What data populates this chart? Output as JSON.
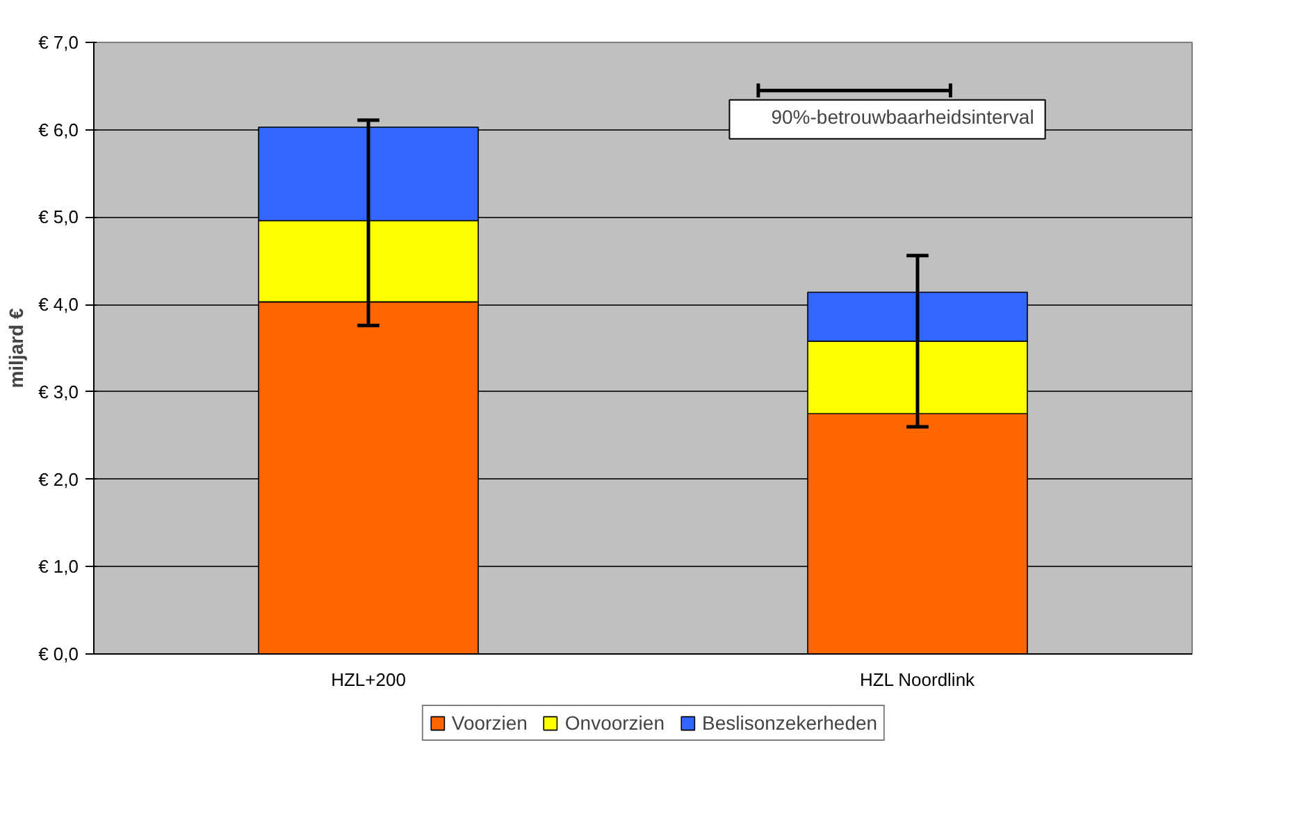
{
  "chart_data": {
    "type": "bar",
    "stacked": true,
    "ylabel": "miljard €",
    "categories": [
      "HZL+200",
      "HZL Noordlink"
    ],
    "series": [
      {
        "name": "Voorzien",
        "color": "#ff6600",
        "values": [
          4.03,
          2.75
        ]
      },
      {
        "name": "Onvoorzien",
        "color": "#ffff00",
        "values": [
          0.93,
          0.83
        ]
      },
      {
        "name": "Beslisonzekerheden",
        "color": "#3366ff",
        "values": [
          1.07,
          0.56
        ],
        "errors": [
          [
            3.76,
            6.11
          ],
          [
            2.6,
            4.56
          ]
        ]
      }
    ],
    "ylim": [
      0,
      7
    ],
    "yticks": [
      {
        "value": 0,
        "label": "€ 0,0"
      },
      {
        "value": 1,
        "label": "€ 1,0"
      },
      {
        "value": 2,
        "label": "€ 2,0"
      },
      {
        "value": 3,
        "label": "€ 3,0"
      },
      {
        "value": 4,
        "label": "€ 4,0"
      },
      {
        "value": 5,
        "label": "€ 5,0"
      },
      {
        "value": 6,
        "label": "€ 6,0"
      },
      {
        "value": 7,
        "label": "€ 7,0"
      }
    ],
    "grid": "y",
    "legend": "bottom",
    "annotations": [
      "90%-betrouwbaarheidsinterval"
    ]
  }
}
